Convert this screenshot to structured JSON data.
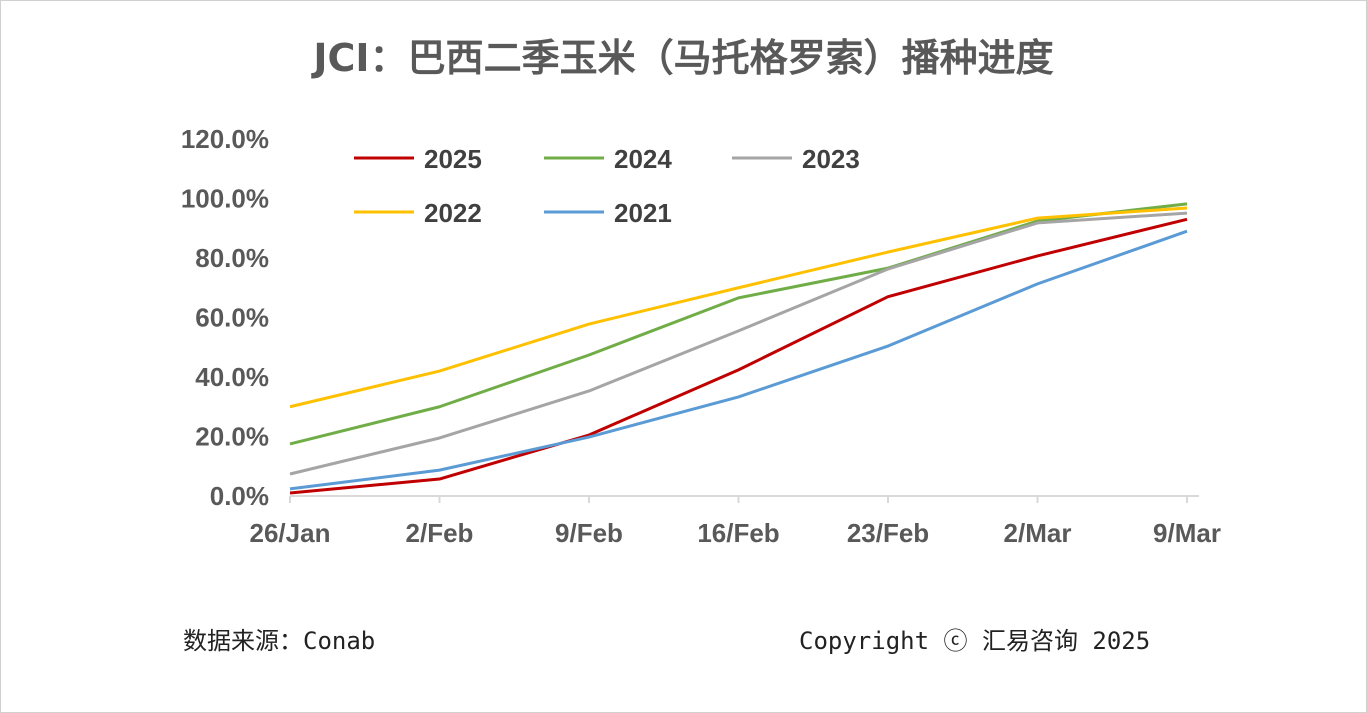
{
  "chart_data": {
    "type": "line",
    "title": "JCI：巴西二季玉米（马托格罗索）播种进度",
    "categories": [
      "26/Jan",
      "2/Feb",
      "9/Feb",
      "16/Feb",
      "23/Feb",
      "2/Mar",
      "9/Mar"
    ],
    "ylim": [
      0,
      120
    ],
    "yticks": [
      "0.0%",
      "20.0%",
      "40.0%",
      "60.0%",
      "80.0%",
      "100.0%",
      "120.0%"
    ],
    "grid": false,
    "legend_position": "top-left",
    "series": [
      {
        "name": "2025",
        "color": "#C00000",
        "values": [
          1.0,
          5.7,
          20.5,
          42.4,
          67.0,
          80.7,
          93.0
        ]
      },
      {
        "name": "2024",
        "color": "#70AD47",
        "values": [
          17.5,
          30.0,
          47.4,
          66.6,
          76.6,
          92.4,
          98.2
        ]
      },
      {
        "name": "2023",
        "color": "#A5A5A5",
        "values": [
          7.4,
          19.5,
          35.3,
          55.5,
          76.3,
          91.8,
          95.1
        ]
      },
      {
        "name": "2022",
        "color": "#FFC000",
        "values": [
          30.0,
          42.0,
          57.8,
          70.0,
          82.0,
          93.4,
          96.8
        ]
      },
      {
        "name": "2021",
        "color": "#5B9BD5",
        "values": [
          2.4,
          8.7,
          19.8,
          33.3,
          50.4,
          71.3,
          89.0
        ]
      }
    ]
  },
  "footer": {
    "source": "数据来源：Conab",
    "copyright": "Copyright ⓒ 汇易咨询 2025"
  }
}
